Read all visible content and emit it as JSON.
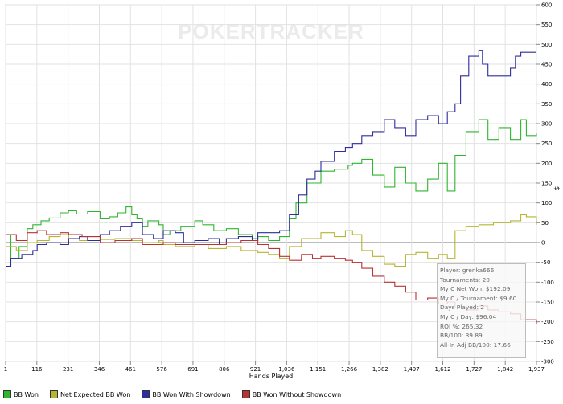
{
  "chart_data": {
    "type": "line",
    "watermark": "POKERTRACKER",
    "xlabel": "Hands Played",
    "ylabel": "$",
    "xlim": [
      1,
      1937
    ],
    "ylim": [
      -300,
      600
    ],
    "x_ticks": [
      "1",
      "116",
      "231",
      "346",
      "461",
      "576",
      "691",
      "806",
      "921",
      "1,036",
      "1,151",
      "1,266",
      "1,382",
      "1,497",
      "1,612",
      "1,727",
      "1,842",
      "1,937"
    ],
    "y_ticks": [
      600,
      550,
      500,
      450,
      400,
      350,
      300,
      250,
      200,
      150,
      100,
      50,
      0,
      -50,
      -100,
      -150,
      -200,
      -250,
      -300
    ],
    "series": [
      {
        "name": "BB Won",
        "color": "#2fb52f",
        "points": [
          [
            1,
            20
          ],
          [
            20,
            -40
          ],
          [
            50,
            -10
          ],
          [
            80,
            35
          ],
          [
            100,
            45
          ],
          [
            130,
            55
          ],
          [
            160,
            62
          ],
          [
            200,
            75
          ],
          [
            230,
            80
          ],
          [
            260,
            72
          ],
          [
            300,
            78
          ],
          [
            346,
            60
          ],
          [
            380,
            65
          ],
          [
            410,
            75
          ],
          [
            440,
            90
          ],
          [
            461,
            70
          ],
          [
            480,
            60
          ],
          [
            500,
            40
          ],
          [
            520,
            55
          ],
          [
            560,
            45
          ],
          [
            576,
            20
          ],
          [
            600,
            30
          ],
          [
            640,
            40
          ],
          [
            691,
            55
          ],
          [
            720,
            45
          ],
          [
            760,
            30
          ],
          [
            806,
            35
          ],
          [
            850,
            20
          ],
          [
            900,
            10
          ],
          [
            921,
            15
          ],
          [
            960,
            5
          ],
          [
            1000,
            15
          ],
          [
            1036,
            60
          ],
          [
            1060,
            100
          ],
          [
            1100,
            150
          ],
          [
            1151,
            180
          ],
          [
            1200,
            185
          ],
          [
            1250,
            195
          ],
          [
            1266,
            200
          ],
          [
            1300,
            210
          ],
          [
            1340,
            170
          ],
          [
            1382,
            140
          ],
          [
            1420,
            190
          ],
          [
            1460,
            150
          ],
          [
            1497,
            130
          ],
          [
            1540,
            160
          ],
          [
            1580,
            200
          ],
          [
            1612,
            130
          ],
          [
            1640,
            220
          ],
          [
            1680,
            280
          ],
          [
            1727,
            310
          ],
          [
            1760,
            260
          ],
          [
            1800,
            290
          ],
          [
            1842,
            260
          ],
          [
            1880,
            310
          ],
          [
            1900,
            270
          ],
          [
            1937,
            275
          ]
        ]
      },
      {
        "name": "Net Expected BB Won",
        "color": "#b5b532",
        "points": [
          [
            1,
            -10
          ],
          [
            40,
            -20
          ],
          [
            80,
            0
          ],
          [
            116,
            5
          ],
          [
            160,
            15
          ],
          [
            200,
            20
          ],
          [
            231,
            10
          ],
          [
            270,
            5
          ],
          [
            300,
            15
          ],
          [
            346,
            8
          ],
          [
            400,
            10
          ],
          [
            461,
            5
          ],
          [
            500,
            0
          ],
          [
            560,
            5
          ],
          [
            576,
            -5
          ],
          [
            620,
            -10
          ],
          [
            691,
            -5
          ],
          [
            740,
            -15
          ],
          [
            806,
            -10
          ],
          [
            860,
            -20
          ],
          [
            921,
            -25
          ],
          [
            960,
            -30
          ],
          [
            1000,
            -40
          ],
          [
            1036,
            -10
          ],
          [
            1080,
            10
          ],
          [
            1151,
            25
          ],
          [
            1200,
            15
          ],
          [
            1240,
            30
          ],
          [
            1266,
            20
          ],
          [
            1300,
            -20
          ],
          [
            1340,
            -35
          ],
          [
            1382,
            -55
          ],
          [
            1420,
            -60
          ],
          [
            1460,
            -30
          ],
          [
            1497,
            -25
          ],
          [
            1540,
            -40
          ],
          [
            1580,
            -30
          ],
          [
            1612,
            -40
          ],
          [
            1640,
            30
          ],
          [
            1680,
            40
          ],
          [
            1727,
            45
          ],
          [
            1780,
            50
          ],
          [
            1842,
            55
          ],
          [
            1880,
            70
          ],
          [
            1900,
            65
          ],
          [
            1937,
            45
          ]
        ]
      },
      {
        "name": "BB Won With Showdown",
        "color": "#2d2d9c",
        "points": [
          [
            1,
            -60
          ],
          [
            20,
            -40
          ],
          [
            60,
            -30
          ],
          [
            100,
            -20
          ],
          [
            116,
            -5
          ],
          [
            150,
            0
          ],
          [
            200,
            -5
          ],
          [
            231,
            10
          ],
          [
            270,
            15
          ],
          [
            300,
            5
          ],
          [
            346,
            20
          ],
          [
            380,
            30
          ],
          [
            420,
            40
          ],
          [
            461,
            50
          ],
          [
            500,
            20
          ],
          [
            540,
            10
          ],
          [
            576,
            30
          ],
          [
            620,
            25
          ],
          [
            650,
            0
          ],
          [
            691,
            5
          ],
          [
            740,
            10
          ],
          [
            780,
            -5
          ],
          [
            806,
            10
          ],
          [
            850,
            15
          ],
          [
            900,
            5
          ],
          [
            921,
            25
          ],
          [
            960,
            25
          ],
          [
            1000,
            30
          ],
          [
            1036,
            70
          ],
          [
            1070,
            120
          ],
          [
            1100,
            160
          ],
          [
            1130,
            180
          ],
          [
            1151,
            205
          ],
          [
            1200,
            230
          ],
          [
            1240,
            240
          ],
          [
            1266,
            250
          ],
          [
            1300,
            270
          ],
          [
            1340,
            280
          ],
          [
            1382,
            310
          ],
          [
            1420,
            290
          ],
          [
            1460,
            270
          ],
          [
            1497,
            310
          ],
          [
            1540,
            320
          ],
          [
            1580,
            300
          ],
          [
            1612,
            330
          ],
          [
            1640,
            350
          ],
          [
            1660,
            420
          ],
          [
            1690,
            470
          ],
          [
            1727,
            485
          ],
          [
            1740,
            450
          ],
          [
            1760,
            420
          ],
          [
            1800,
            420
          ],
          [
            1842,
            440
          ],
          [
            1860,
            470
          ],
          [
            1880,
            480
          ],
          [
            1937,
            480
          ]
        ]
      },
      {
        "name": "BB Won Without Showdown",
        "color": "#b93232",
        "points": [
          [
            1,
            20
          ],
          [
            40,
            5
          ],
          [
            80,
            25
          ],
          [
            116,
            30
          ],
          [
            150,
            20
          ],
          [
            200,
            25
          ],
          [
            231,
            20
          ],
          [
            280,
            15
          ],
          [
            346,
            0
          ],
          [
            400,
            5
          ],
          [
            461,
            10
          ],
          [
            500,
            -5
          ],
          [
            576,
            0
          ],
          [
            620,
            -5
          ],
          [
            691,
            -5
          ],
          [
            740,
            -5
          ],
          [
            806,
            0
          ],
          [
            860,
            5
          ],
          [
            921,
            -5
          ],
          [
            960,
            -15
          ],
          [
            1000,
            -35
          ],
          [
            1036,
            -45
          ],
          [
            1080,
            -30
          ],
          [
            1120,
            -40
          ],
          [
            1151,
            -35
          ],
          [
            1200,
            -40
          ],
          [
            1240,
            -45
          ],
          [
            1266,
            -50
          ],
          [
            1300,
            -65
          ],
          [
            1340,
            -85
          ],
          [
            1382,
            -100
          ],
          [
            1420,
            -110
          ],
          [
            1460,
            -125
          ],
          [
            1497,
            -145
          ],
          [
            1540,
            -140
          ],
          [
            1580,
            -155
          ],
          [
            1612,
            -150
          ],
          [
            1640,
            -165
          ],
          [
            1680,
            -170
          ],
          [
            1727,
            -160
          ],
          [
            1760,
            -170
          ],
          [
            1800,
            -175
          ],
          [
            1842,
            -180
          ],
          [
            1880,
            -195
          ],
          [
            1937,
            -205
          ]
        ]
      }
    ]
  },
  "stats": {
    "player": "Player: grenka666",
    "tournaments": "Tournaments: 20",
    "net_won": "My C Net Won: $192.09",
    "per_tournament": "My C / Tournament: $9.60",
    "days_played": "Days Played: 2",
    "per_day": "My C / Day: $96.04",
    "roi": "ROI %: 265.32",
    "bb100": "BB/100: 39.89",
    "allin_bb100": "All-In Adj BB/100: 17.66"
  },
  "legend": [
    {
      "label": "BB Won",
      "color": "#2fb52f"
    },
    {
      "label": "Net Expected BB Won",
      "color": "#b5b532"
    },
    {
      "label": "BB Won With Showdown",
      "color": "#2d2d9c"
    },
    {
      "label": "BB Won Without Showdown",
      "color": "#b93232"
    }
  ]
}
